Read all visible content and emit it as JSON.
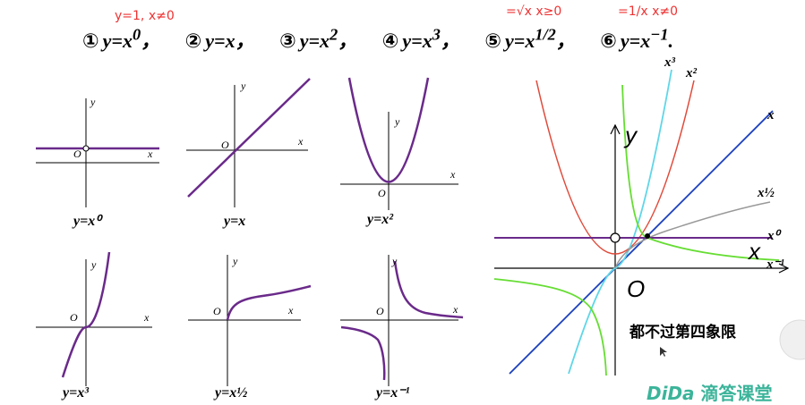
{
  "header": {
    "items": [
      {
        "num": "①",
        "text": "y=x",
        "sup": "0"
      },
      {
        "num": "②",
        "text": "y=x",
        "sup": ""
      },
      {
        "num": "③",
        "text": "y=x",
        "sup": "2"
      },
      {
        "num": "④",
        "text": "y=x",
        "sup": "3"
      },
      {
        "num": "⑤",
        "text": "y=x",
        "sup": "1/2"
      },
      {
        "num": "⑥",
        "text": "y=x",
        "sup": "−1"
      }
    ],
    "sep": "，",
    "end": "."
  },
  "annotations": {
    "note1": "y=1, x≠0",
    "note2": "=√x  x≥0",
    "note3": "=1/x   x≠0"
  },
  "panels": {
    "axis_x": "x",
    "axis_y": "y",
    "origin": "O",
    "captions": [
      "y=x⁰",
      "y=x",
      "y=x²",
      "y=x³",
      "y=x½",
      "y=x⁻¹"
    ]
  },
  "big_graph": {
    "axis_x": "x",
    "axis_y": "y",
    "origin": "O",
    "labels": {
      "x": "x",
      "x3": "x³",
      "x2": "x²",
      "xhalf": "x½",
      "x0": "x⁰",
      "xinv": "x⁻¹"
    },
    "colors": {
      "x": "#1a3fbf",
      "x2": "#e04a3a",
      "x3": "#5fd6e8",
      "xhalf": "#999999",
      "x0": "#6a2a8a",
      "xinv": "#66dd33"
    }
  },
  "note_cn": "都不过第四象限",
  "brand": {
    "logo": "DiDa",
    "name": "滴答课堂"
  }
}
